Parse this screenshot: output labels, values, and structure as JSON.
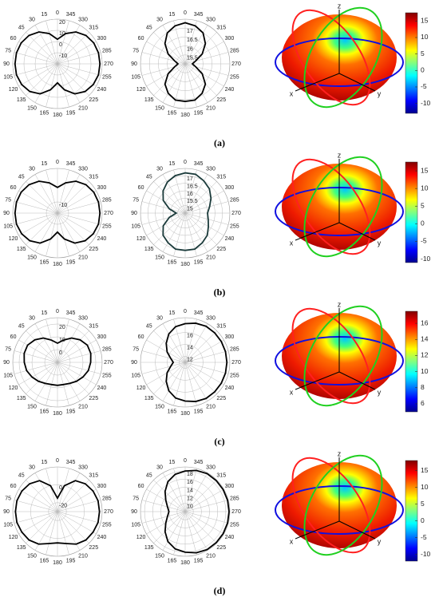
{
  "chart_data": [
    {
      "type": "polar",
      "caption": "(a)",
      "rlim": [
        -20,
        20
      ],
      "rticks": [
        20,
        10,
        0,
        -10
      ],
      "color": "#000000",
      "theta": [
        0,
        15,
        30,
        45,
        60,
        75,
        90,
        105,
        120,
        135,
        150,
        165,
        180,
        195,
        210,
        225,
        240,
        255,
        270,
        285,
        300,
        315,
        330,
        345
      ],
      "thetaticks": [
        0,
        15,
        30,
        45,
        60,
        75,
        90,
        105,
        120,
        135,
        150,
        165,
        180,
        195,
        210,
        225,
        240,
        255,
        270,
        285,
        300,
        315,
        330,
        345
      ],
      "values": [
        2,
        8,
        13,
        16,
        17.5,
        18,
        18,
        18,
        17,
        15,
        11,
        4,
        -3,
        4,
        11,
        15,
        17,
        18,
        18,
        18,
        17.5,
        16,
        13,
        8
      ]
    },
    {
      "type": "polar",
      "rlim": [
        15,
        17.5
      ],
      "rticks": [
        17,
        16.5,
        16,
        15.5
      ],
      "color": "#000000",
      "theta": [
        0,
        15,
        30,
        45,
        60,
        75,
        90,
        105,
        120,
        135,
        150,
        165,
        180,
        195,
        210,
        225,
        240,
        255,
        270,
        285,
        300,
        315,
        330,
        345
      ],
      "thetaticks": [
        0,
        15,
        30,
        45,
        60,
        75,
        90,
        105,
        120,
        135,
        150,
        165,
        180,
        195,
        210,
        225,
        240,
        255,
        270,
        285,
        300,
        315,
        330,
        345
      ],
      "values": [
        17.3,
        17.2,
        17,
        16.6,
        16.1,
        15.6,
        15.4,
        15.6,
        16.1,
        16.6,
        16.9,
        17.1,
        17.1,
        17.1,
        16.9,
        16.6,
        16.1,
        15.6,
        15.4,
        15.6,
        16.1,
        16.6,
        17,
        17.2
      ]
    },
    {
      "type": "surface3d",
      "colormap": "jet",
      "axis_labels": [
        "x",
        "y",
        "z"
      ],
      "ylim": [
        -13,
        17.5
      ],
      "yticks": [
        -10,
        -5,
        0,
        5,
        10,
        15
      ]
    },
    {
      "type": "polar",
      "caption": "(b)",
      "rlim": [
        -20,
        20
      ],
      "rticks": [
        -10
      ],
      "color": "#000000",
      "theta": [
        0,
        15,
        30,
        45,
        60,
        75,
        90,
        105,
        120,
        135,
        150,
        165,
        180,
        195,
        210,
        225,
        240,
        255,
        270,
        285,
        300,
        315,
        330,
        345
      ],
      "thetaticks": [
        0,
        15,
        30,
        45,
        60,
        75,
        90,
        105,
        120,
        135,
        150,
        165,
        180,
        195,
        210,
        225,
        240,
        255,
        270,
        285,
        300,
        315,
        330,
        345
      ],
      "values": [
        3,
        8,
        13,
        16,
        17.5,
        18,
        18,
        18,
        17,
        15,
        11,
        4,
        -3,
        4,
        11,
        15,
        17,
        18,
        18,
        18,
        17.5,
        16,
        13,
        8
      ]
    },
    {
      "type": "polar",
      "rlim": [
        14.5,
        17.5
      ],
      "rticks": [
        17,
        16.5,
        16,
        15.5,
        15
      ],
      "color": "#1a3a3a",
      "theta": [
        0,
        15,
        30,
        45,
        60,
        75,
        90,
        105,
        120,
        135,
        150,
        165,
        180,
        195,
        210,
        225,
        240,
        255,
        270,
        285,
        300,
        315,
        330,
        345
      ],
      "thetaticks": [
        0,
        15,
        30,
        45,
        60,
        75,
        90,
        105,
        120,
        135,
        150,
        165,
        180,
        195,
        210,
        225,
        240,
        255,
        270,
        285,
        300,
        315,
        330,
        345
      ],
      "values": [
        17.2,
        17.1,
        16.9,
        16.6,
        16.2,
        15.6,
        15.1,
        15.6,
        16.2,
        16.6,
        16.8,
        17,
        17,
        17,
        16.8,
        16.6,
        16.3,
        16.1,
        16,
        16.2,
        16.5,
        16.8,
        17,
        17.2
      ]
    },
    {
      "type": "surface3d",
      "colormap": "jet",
      "axis_labels": [
        "x",
        "y",
        "z"
      ],
      "ylim": [
        -11,
        17.5
      ],
      "yticks": [
        -10,
        -5,
        0,
        5,
        10,
        15
      ]
    },
    {
      "type": "polar",
      "caption": "(c)",
      "rlim": [
        -10,
        25
      ],
      "rticks": [
        20,
        10,
        0
      ],
      "color": "#000000",
      "theta": [
        0,
        15,
        30,
        45,
        60,
        75,
        90,
        105,
        120,
        135,
        150,
        165,
        180,
        195,
        210,
        225,
        240,
        255,
        270,
        285,
        300,
        315,
        330,
        345
      ],
      "thetaticks": [
        0,
        15,
        30,
        45,
        60,
        75,
        90,
        105,
        120,
        135,
        150,
        165,
        180,
        195,
        210,
        225,
        240,
        255,
        270,
        285,
        300,
        315,
        330,
        345
      ],
      "values": [
        5,
        8,
        12,
        15,
        17,
        17,
        16,
        15,
        13,
        11,
        9,
        8,
        8,
        8,
        9,
        11,
        13,
        15,
        16,
        17,
        17,
        15,
        12,
        8
      ]
    },
    {
      "type": "polar",
      "rlim": [
        11,
        18.5
      ],
      "rticks": [
        16,
        14,
        12
      ],
      "color": "#000000",
      "theta": [
        0,
        15,
        30,
        45,
        60,
        75,
        90,
        105,
        120,
        135,
        150,
        165,
        180,
        195,
        210,
        225,
        240,
        255,
        270,
        285,
        300,
        315,
        330,
        345
      ],
      "thetaticks": [
        0,
        15,
        30,
        45,
        60,
        75,
        90,
        105,
        120,
        135,
        150,
        165,
        180,
        195,
        210,
        225,
        240,
        255,
        270,
        285,
        300,
        315,
        330,
        345
      ],
      "values": [
        17.5,
        17.2,
        16.5,
        15.5,
        14.5,
        13.5,
        13,
        13.5,
        14.5,
        15.5,
        16.5,
        17.2,
        17.5,
        17.8,
        18,
        18,
        18,
        18,
        18,
        18,
        18,
        18,
        18,
        17.8
      ]
    },
    {
      "type": "surface3d",
      "colormap": "jet",
      "axis_labels": [
        "x",
        "y",
        "z"
      ],
      "ylim": [
        5,
        17.5
      ],
      "yticks": [
        6,
        8,
        10,
        12,
        14,
        16
      ]
    },
    {
      "type": "polar",
      "caption": "(d)",
      "rlim": [
        -30,
        20
      ],
      "rticks": [
        0,
        -20
      ],
      "color": "#000000",
      "theta": [
        0,
        15,
        30,
        45,
        60,
        75,
        90,
        105,
        120,
        135,
        150,
        165,
        180,
        195,
        210,
        225,
        240,
        255,
        270,
        285,
        300,
        315,
        330,
        345
      ],
      "thetaticks": [
        0,
        15,
        30,
        45,
        60,
        75,
        90,
        105,
        120,
        135,
        150,
        165,
        180,
        195,
        210,
        225,
        240,
        255,
        270,
        285,
        300,
        315,
        330,
        345
      ],
      "values": [
        -15,
        0,
        10,
        14,
        16,
        17,
        17,
        17,
        16,
        15,
        12,
        7,
        5,
        7,
        12,
        15,
        16,
        17,
        17,
        17,
        16,
        14,
        10,
        0
      ]
    },
    {
      "type": "polar",
      "rlim": [
        8,
        19
      ],
      "rticks": [
        18,
        16,
        14,
        12,
        10
      ],
      "color": "#000000",
      "theta": [
        0,
        15,
        30,
        45,
        60,
        75,
        90,
        105,
        120,
        135,
        150,
        165,
        180,
        195,
        210,
        225,
        240,
        255,
        270,
        285,
        300,
        315,
        330,
        345
      ],
      "thetaticks": [
        0,
        15,
        30,
        45,
        60,
        75,
        90,
        105,
        120,
        135,
        150,
        165,
        180,
        195,
        210,
        225,
        240,
        255,
        270,
        285,
        300,
        315,
        330,
        345
      ],
      "values": [
        18,
        17.5,
        16.5,
        15,
        13.5,
        12.5,
        12,
        12.5,
        13.5,
        15,
        16.5,
        17.5,
        18,
        18.5,
        18.8,
        18.8,
        18.8,
        18.8,
        18.8,
        18.8,
        18.8,
        18.8,
        18.8,
        18.5
      ]
    },
    {
      "type": "surface3d",
      "colormap": "jet",
      "axis_labels": [
        "x",
        "y",
        "z"
      ],
      "ylim": [
        -12,
        18
      ],
      "yticks": [
        -10,
        -5,
        0,
        5,
        10,
        15
      ]
    }
  ]
}
